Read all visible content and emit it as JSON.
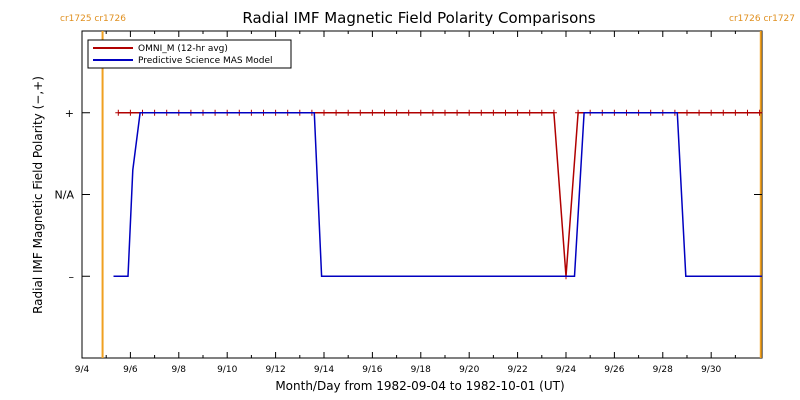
{
  "chart_data": {
    "type": "line",
    "title": "Radial IMF Magnetic Field Polarity Comparisons",
    "xlabel": "Month/Day from 1982-09-04 to 1982-10-01 (UT)",
    "ylabel": "Radial IMF Magnetic Field Polarity (−,+)",
    "x_ticks": [
      "9/4",
      "9/6",
      "9/8",
      "9/10",
      "9/12",
      "9/14",
      "9/16",
      "9/18",
      "9/20",
      "9/22",
      "9/24",
      "9/26",
      "9/28",
      "9/30"
    ],
    "x_tick_days": [
      0,
      2,
      4,
      6,
      8,
      10,
      12,
      14,
      16,
      18,
      20,
      22,
      24,
      26
    ],
    "xlim_days": [
      0,
      28.1
    ],
    "y_ticks": [
      {
        "label": "+",
        "value": 1
      },
      {
        "label": "N/A",
        "value": 0
      },
      {
        "label": "–",
        "value": -1
      }
    ],
    "ylim": [
      -2,
      2
    ],
    "grid": false,
    "legend_position": "top-left",
    "carrington_labels": {
      "left": "cr1725 cr1726",
      "right": "cr1726 cr1727"
    },
    "carrington_boundaries_days": [
      0.85,
      28.05
    ],
    "series": [
      {
        "name": "OMNI_M (12-hr avg)",
        "color": "#b00000",
        "marker": "+",
        "points": [
          [
            1.5,
            1
          ],
          [
            2.0,
            1
          ],
          [
            2.5,
            1
          ],
          [
            3.0,
            1
          ],
          [
            3.5,
            1
          ],
          [
            4.0,
            1
          ],
          [
            4.5,
            1
          ],
          [
            5.0,
            1
          ],
          [
            5.5,
            1
          ],
          [
            6.0,
            1
          ],
          [
            6.5,
            1
          ],
          [
            7.0,
            1
          ],
          [
            7.5,
            1
          ],
          [
            8.0,
            1
          ],
          [
            8.5,
            1
          ],
          [
            9.0,
            1
          ],
          [
            9.5,
            1
          ],
          [
            10.0,
            1
          ],
          [
            10.5,
            1
          ],
          [
            11.0,
            1
          ],
          [
            11.5,
            1
          ],
          [
            12.0,
            1
          ],
          [
            12.5,
            1
          ],
          [
            13.0,
            1
          ],
          [
            13.5,
            1
          ],
          [
            14.0,
            1
          ],
          [
            14.5,
            1
          ],
          [
            15.0,
            1
          ],
          [
            15.5,
            1
          ],
          [
            16.0,
            1
          ],
          [
            16.5,
            1
          ],
          [
            17.0,
            1
          ],
          [
            17.5,
            1
          ],
          [
            18.0,
            1
          ],
          [
            18.5,
            1
          ],
          [
            19.0,
            1
          ],
          [
            19.5,
            1
          ],
          [
            20.0,
            -1
          ],
          [
            20.5,
            1
          ],
          [
            21.0,
            1
          ],
          [
            21.5,
            1
          ],
          [
            22.0,
            1
          ],
          [
            22.5,
            1
          ],
          [
            23.0,
            1
          ],
          [
            23.5,
            1
          ],
          [
            24.0,
            1
          ],
          [
            24.5,
            1
          ],
          [
            25.0,
            1
          ],
          [
            25.5,
            1
          ],
          [
            26.0,
            1
          ],
          [
            26.5,
            1
          ],
          [
            27.0,
            1
          ],
          [
            27.5,
            1
          ],
          [
            28.0,
            1
          ]
        ]
      },
      {
        "name": "Predictive Science MAS Model",
        "color": "#0000c0",
        "marker": "none",
        "points": [
          [
            1.3,
            -1
          ],
          [
            1.9,
            -1
          ],
          [
            2.1,
            0.3
          ],
          [
            2.4,
            1
          ],
          [
            9.6,
            1
          ],
          [
            9.9,
            -1
          ],
          [
            20.35,
            -1
          ],
          [
            20.75,
            1
          ],
          [
            24.6,
            1
          ],
          [
            24.95,
            -1
          ],
          [
            28.1,
            -1
          ]
        ]
      }
    ]
  }
}
